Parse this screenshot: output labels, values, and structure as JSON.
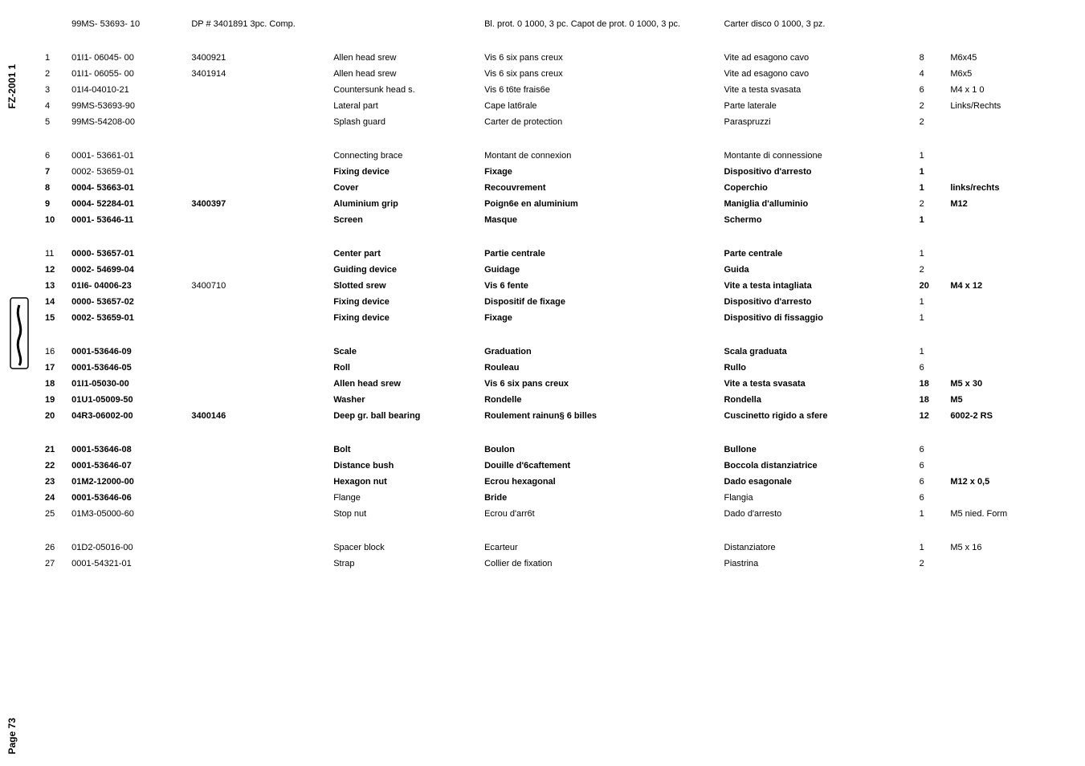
{
  "side": {
    "code": "FZ-2001 1",
    "page": "Page 73"
  },
  "header": {
    "num": "",
    "part": "99MS- 53693-   10",
    "dp": "DP # 3401891 3pc. Comp.",
    "en": "",
    "fr": "Bl. prot. 0 1000, 3 pc. Capot de prot. 0 1000, 3 pc.",
    "it": "Carter disco 0 1000, 3 pz.",
    "qty": "",
    "spec": ""
  },
  "groups": [
    {
      "rows": [
        {
          "num": "1",
          "part": "01I1-   06045- 00",
          "dp": "3400921",
          "en": "Allen head srew",
          "fr": "Vis 6 six pans creux",
          "it": "Vite ad esagono cavo",
          "qty": "8",
          "spec": "M6x45",
          "bold": false
        },
        {
          "num": "2",
          "part": "01I1-   06055- 00",
          "dp": "3401914",
          "en": "Allen head srew",
          "fr": "Vis 6 six pans creux",
          "it": "Vite ad esagono cavo",
          "qty": "4",
          "spec": "M6x5",
          "bold": false
        },
        {
          "num": "3",
          "part": "01I4-04010-21",
          "dp": "",
          "en": "Countersunk head s.",
          "fr": "Vis 6 t6te frais6e",
          "it": "Vite a testa svasata",
          "qty": "6",
          "spec": "M4 x 1 0",
          "bold": false
        },
        {
          "num": "4",
          "part": "99MS-53693-90",
          "dp": "",
          "en": "Lateral part",
          "fr": "Cape lat6rale",
          "it": "Parte laterale",
          "qty": "2",
          "spec": "Links/Rechts",
          "bold": false
        },
        {
          "num": "5",
          "part": "99MS-54208-00",
          "dp": "",
          "en": "Splash guard",
          "fr": "Carter de protection",
          "it": "Paraspruzzi",
          "qty": "2",
          "spec": "",
          "bold": false
        }
      ]
    },
    {
      "rows": [
        {
          "num": "6",
          "part": "0001- 53661-01",
          "dp": "",
          "en": "Connecting brace",
          "fr": "Montant de connexion",
          "it": "Montante di connessione",
          "qty": "1",
          "spec": "",
          "bold": false
        },
        {
          "num": "7",
          "part": "0002- 53659-01",
          "dp": "",
          "en": "Fixing device",
          "fr": "Fixage",
          "it": "Dispositivo d'arresto",
          "qty": "1",
          "spec": "",
          "bold": true,
          "plainCols": [
            "part"
          ]
        },
        {
          "num": "8",
          "part": "0004- 53663-01",
          "dp": "",
          "en": "Cover",
          "fr": "Recouvrement",
          "it": "Coperchio",
          "qty": "1",
          "spec": "links/rechts",
          "bold": true
        },
        {
          "num": "9",
          "part": "0004- 52284-01",
          "dp": "3400397",
          "en": "Aluminium grip",
          "fr": "Poign6e en aluminium",
          "it": "Maniglia d'alluminio",
          "qty": "2",
          "spec": "M12",
          "bold": true,
          "plainCols": [
            "qty"
          ]
        },
        {
          "num": "10",
          "part": "0001- 53646-11",
          "dp": "",
          "en": "Screen",
          "fr": "Masque",
          "it": "Schermo",
          "qty": "1",
          "spec": "",
          "bold": true
        }
      ]
    },
    {
      "rows": [
        {
          "num": "11",
          "part": "0000- 53657-01",
          "dp": "",
          "en": "Center part",
          "fr": "Partie centrale",
          "it": "Parte centrale",
          "qty": "1",
          "spec": "",
          "bold": true,
          "plainCols": [
            "num",
            "qty"
          ]
        },
        {
          "num": "12",
          "part": "0002- 54699-04",
          "dp": "",
          "en": "Guiding device",
          "fr": "Guidage",
          "it": "Guida",
          "qty": "2",
          "spec": "",
          "bold": true,
          "plainCols": [
            "qty"
          ]
        },
        {
          "num": "13",
          "part": "01I6- 04006-23",
          "dp": "3400710",
          "en": "Slotted srew",
          "fr": "Vis 6 fente",
          "it": "Vite a testa intagliata",
          "qty": "20",
          "spec": "M4 x 12",
          "bold": true,
          "plainCols": [
            "dp"
          ]
        },
        {
          "num": "14",
          "part": "0000- 53657-02",
          "dp": "",
          "en": "Fixing device",
          "fr": "Dispositif de fixage",
          "it": "Dispositivo d'arresto",
          "qty": "1",
          "spec": "",
          "bold": true,
          "plainCols": [
            "qty"
          ]
        },
        {
          "num": "15",
          "part": "0002- 53659-01",
          "dp": "",
          "en": "Fixing device",
          "fr": "Fixage",
          "it": "Dispositivo di fissaggio",
          "qty": "1",
          "spec": "",
          "bold": true,
          "plainCols": [
            "qty"
          ]
        }
      ]
    },
    {
      "rows": [
        {
          "num": "16",
          "part": "0001-53646-09",
          "dp": "",
          "en": "Scale",
          "fr": "Graduation",
          "it": "Scala graduata",
          "qty": "1",
          "spec": "",
          "bold": true,
          "plainCols": [
            "num",
            "qty"
          ]
        },
        {
          "num": "17",
          "part": "0001-53646-05",
          "dp": "",
          "en": "Roll",
          "fr": "Rouleau",
          "it": "Rullo",
          "qty": "6",
          "spec": "",
          "bold": true,
          "plainCols": [
            "qty"
          ]
        },
        {
          "num": "18",
          "part": "01I1-05030-00",
          "dp": "",
          "en": "Allen head srew",
          "fr": "Vis 6 six pans creux",
          "it": "Vite a testa svasata",
          "qty": "18",
          "spec": "M5 x 30",
          "bold": true
        },
        {
          "num": "19",
          "part": "01U1-05009-50",
          "dp": "",
          "en": "Washer",
          "fr": "Rondelle",
          "it": "Rondella",
          "qty": "18",
          "spec": "M5",
          "bold": true
        },
        {
          "num": "20",
          "part": "04R3-06002-00",
          "dp": "3400146",
          "en": "Deep gr. ball bearing",
          "fr": "Roulement rainun§ 6 billes",
          "it": "Cuscinetto rigido a sfere",
          "qty": "12",
          "spec": "6002-2 RS",
          "bold": true
        }
      ]
    },
    {
      "rows": [
        {
          "num": "21",
          "part": "0001-53646-08",
          "dp": "",
          "en": "Bolt",
          "fr": "Boulon",
          "it": "Bullone",
          "qty": "6",
          "spec": "",
          "bold": true,
          "plainCols": [
            "qty"
          ]
        },
        {
          "num": "22",
          "part": "0001-53646-07",
          "dp": "",
          "en": "Distance bush",
          "fr": "Douille d'6caftement",
          "it": "Boccola distanziatrice",
          "qty": "6",
          "spec": "",
          "bold": true,
          "plainCols": [
            "qty"
          ]
        },
        {
          "num": "23",
          "part": "01M2-12000-00",
          "dp": "",
          "en": "Hexagon nut",
          "fr": "Ecrou hexagonal",
          "it": "Dado esagonale",
          "qty": "6",
          "spec": "M12 x 0,5",
          "bold": true,
          "plainCols": [
            "qty"
          ]
        },
        {
          "num": "24",
          "part": "0001-53646-06",
          "dp": "",
          "en": "Flange",
          "fr": "Bride",
          "it": "Flangia",
          "qty": "6",
          "spec": "",
          "bold": true,
          "plainCols": [
            "en",
            "it",
            "qty"
          ]
        },
        {
          "num": "25",
          "part": "01M3-05000-60",
          "dp": "",
          "en": "Stop nut",
          "fr": "Ecrou d'arr6t",
          "it": "Dado d'arresto",
          "qty": "1",
          "spec": "M5 nied. Form",
          "bold": false
        }
      ]
    },
    {
      "rows": [
        {
          "num": "26",
          "part": "01D2-05016-00",
          "dp": "",
          "en": "Spacer block",
          "fr": "Ecarteur",
          "it": "Distanziatore",
          "qty": "1",
          "spec": "M5 x 16",
          "bold": false
        },
        {
          "num": "27",
          "part": "0001-54321-01",
          "dp": "",
          "en": "Strap",
          "fr": "Collier de fixation",
          "it": "Piastrina",
          "qty": "2",
          "spec": "",
          "bold": false
        }
      ]
    }
  ],
  "cols": [
    "num",
    "part",
    "dp",
    "en",
    "fr",
    "it",
    "qty",
    "spec"
  ]
}
